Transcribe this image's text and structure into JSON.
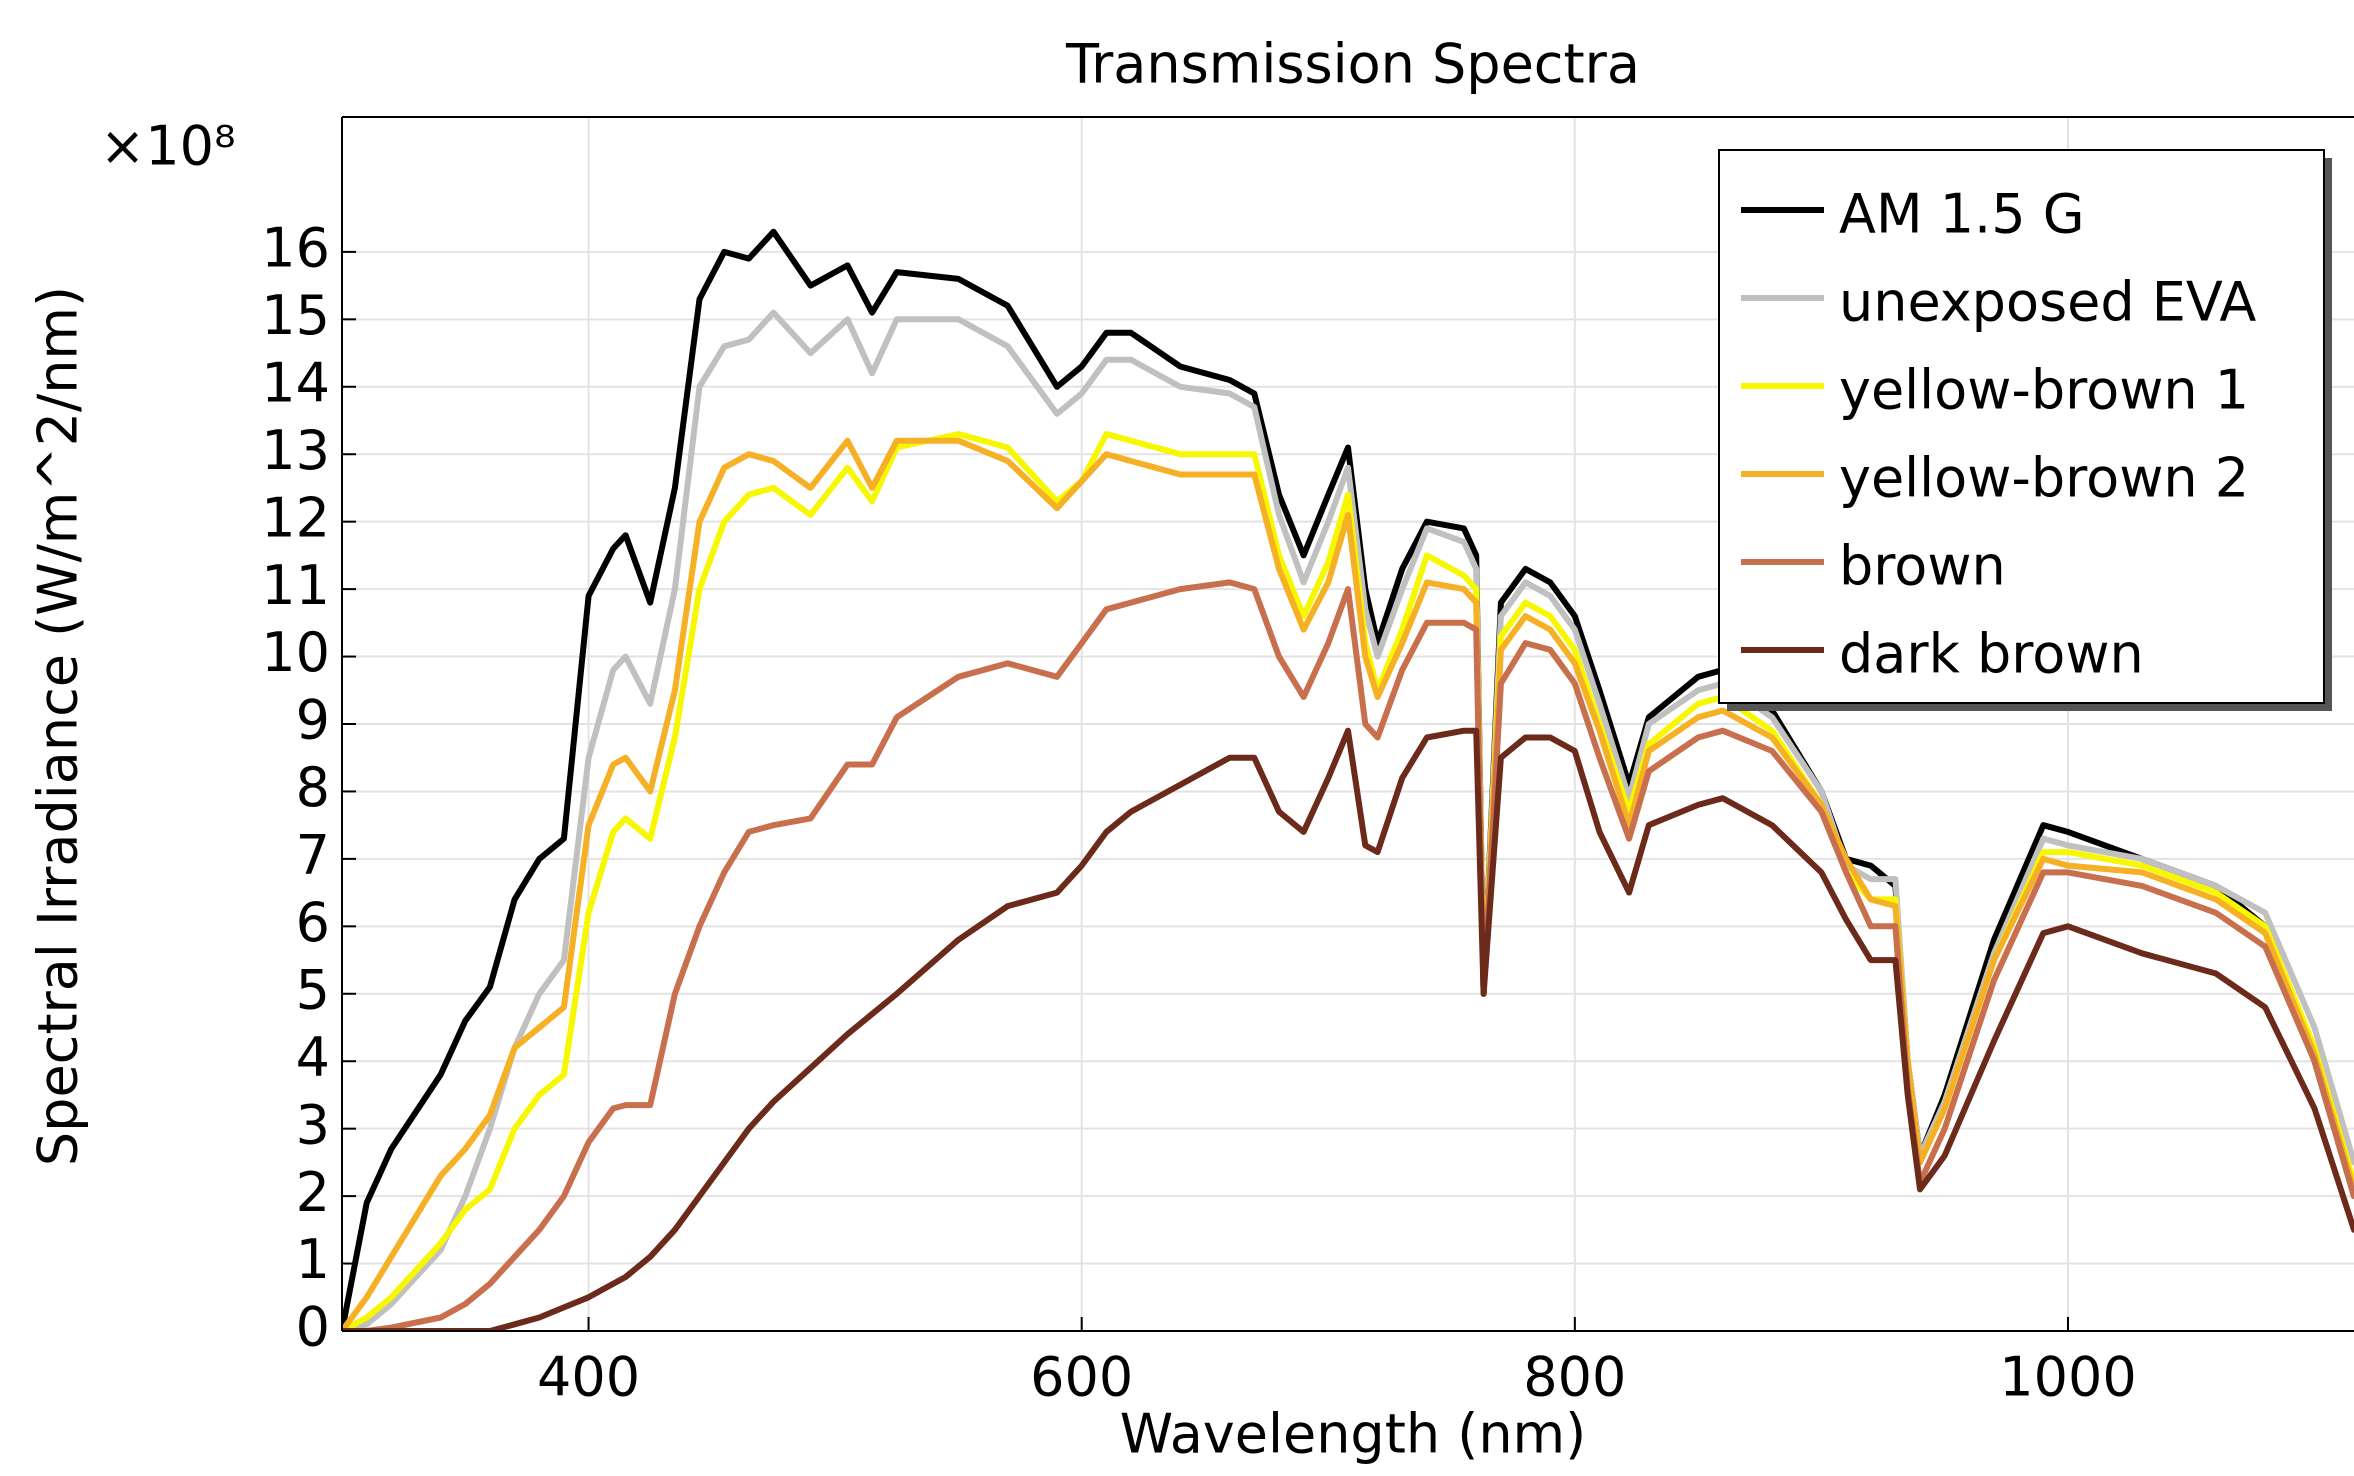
{
  "chart_data": {
    "type": "line",
    "title": "Transmission Spectra",
    "xlabel": "Wavelength (nm)",
    "ylabel": "Spectral Irradiance (W/m^2/nm)",
    "y_multiplier": "×10⁸",
    "xlim": [
      300,
      1116
    ],
    "xticks": [
      400,
      600,
      800,
      1000
    ],
    "ylim": [
      0,
      18
    ],
    "yticks": [
      0,
      1,
      2,
      3,
      4,
      5,
      6,
      7,
      8,
      9,
      10,
      11,
      12,
      13,
      14,
      15,
      16
    ],
    "grid": true,
    "legend": "upper right",
    "x": [
      300,
      310,
      320,
      340,
      350,
      360,
      370,
      380,
      390,
      400,
      410,
      415,
      425,
      435,
      445,
      455,
      465,
      475,
      490,
      505,
      515,
      525,
      550,
      570,
      590,
      600,
      610,
      620,
      640,
      660,
      670,
      680,
      690,
      700,
      708,
      715,
      720,
      730,
      740,
      755,
      760,
      763,
      770,
      780,
      790,
      800,
      810,
      822,
      830,
      850,
      860,
      880,
      900,
      910,
      920,
      930,
      935,
      940,
      950,
      970,
      990,
      1000,
      1030,
      1060,
      1080,
      1100,
      1116
    ],
    "series": [
      {
        "name": "AM 1.5 G",
        "color": "#000000",
        "values": [
          0,
          1.9,
          2.7,
          3.8,
          4.6,
          5.1,
          6.4,
          7.0,
          7.3,
          10.9,
          11.6,
          11.8,
          10.8,
          12.5,
          15.3,
          16.0,
          15.9,
          16.3,
          15.5,
          15.8,
          15.1,
          15.7,
          15.6,
          15.2,
          14.0,
          14.3,
          14.8,
          14.8,
          14.3,
          14.1,
          13.9,
          12.4,
          11.5,
          12.4,
          13.1,
          11.0,
          10.2,
          11.3,
          12.0,
          11.9,
          11.5,
          5.0,
          10.8,
          11.3,
          11.1,
          10.6,
          9.5,
          8.1,
          9.1,
          9.7,
          9.8,
          9.2,
          8.0,
          7.0,
          6.9,
          6.6,
          4.0,
          2.6,
          3.5,
          5.8,
          7.5,
          7.4,
          7.0,
          6.6,
          6.0,
          4.0,
          2.0
        ]
      },
      {
        "name": "unexposed EVA",
        "color": "#c0c0c0",
        "values": [
          0,
          0.1,
          0.4,
          1.2,
          2.0,
          3.0,
          4.2,
          5.0,
          5.5,
          8.5,
          9.8,
          10.0,
          9.3,
          11.0,
          14.0,
          14.6,
          14.7,
          15.1,
          14.5,
          15.0,
          14.2,
          15.0,
          15.0,
          14.6,
          13.6,
          13.9,
          14.4,
          14.4,
          14.0,
          13.9,
          13.7,
          12.1,
          11.1,
          12.0,
          12.8,
          10.7,
          10.0,
          11.0,
          11.9,
          11.7,
          11.3,
          5.0,
          10.6,
          11.1,
          10.9,
          10.4,
          9.3,
          7.9,
          9.0,
          9.5,
          9.6,
          9.1,
          8.0,
          6.9,
          6.7,
          6.7,
          4.0,
          2.6,
          3.4,
          5.6,
          7.3,
          7.2,
          7.0,
          6.6,
          6.2,
          4.5,
          2.5
        ]
      },
      {
        "name": "yellow-brown 1",
        "color": "#f7f700",
        "values": [
          0,
          0.2,
          0.5,
          1.3,
          1.8,
          2.1,
          3.0,
          3.5,
          3.8,
          6.2,
          7.4,
          7.6,
          7.3,
          8.8,
          11.0,
          12.0,
          12.4,
          12.5,
          12.1,
          12.8,
          12.3,
          13.1,
          13.3,
          13.1,
          12.3,
          12.6,
          13.3,
          13.2,
          13.0,
          13.0,
          13.0,
          11.5,
          10.6,
          11.4,
          12.4,
          10.2,
          9.5,
          10.4,
          11.5,
          11.2,
          11.0,
          5.0,
          10.3,
          10.8,
          10.6,
          10.1,
          9.0,
          7.7,
          8.7,
          9.3,
          9.4,
          8.9,
          7.8,
          6.8,
          6.4,
          6.4,
          4.0,
          2.5,
          3.3,
          5.5,
          7.1,
          7.1,
          6.9,
          6.5,
          6.0,
          4.2,
          2.2
        ]
      },
      {
        "name": "yellow-brown 2",
        "color": "#f5b025",
        "values": [
          0,
          0.5,
          1.1,
          2.3,
          2.7,
          3.2,
          4.2,
          4.5,
          4.8,
          7.5,
          8.4,
          8.5,
          8.0,
          9.5,
          12.0,
          12.8,
          13.0,
          12.9,
          12.5,
          13.2,
          12.5,
          13.2,
          13.2,
          12.9,
          12.2,
          12.6,
          13.0,
          12.9,
          12.7,
          12.7,
          12.7,
          11.3,
          10.4,
          11.1,
          12.1,
          10.0,
          9.4,
          10.2,
          11.1,
          11.0,
          10.8,
          5.0,
          10.1,
          10.6,
          10.4,
          9.9,
          8.9,
          7.5,
          8.6,
          9.1,
          9.2,
          8.8,
          7.8,
          7.0,
          6.4,
          6.3,
          4.0,
          2.5,
          3.3,
          5.5,
          7.0,
          6.9,
          6.8,
          6.4,
          5.9,
          4.1,
          2.1
        ]
      },
      {
        "name": "brown",
        "color": "#c8704d",
        "values": [
          0,
          0,
          0.05,
          0.2,
          0.4,
          0.7,
          1.1,
          1.5,
          2.0,
          2.8,
          3.3,
          3.35,
          3.35,
          5.0,
          6.0,
          6.8,
          7.4,
          7.5,
          7.6,
          8.4,
          8.4,
          9.1,
          9.7,
          9.9,
          9.7,
          10.2,
          10.7,
          10.8,
          11.0,
          11.1,
          11.0,
          10.0,
          9.4,
          10.2,
          11.0,
          9.0,
          8.8,
          9.8,
          10.5,
          10.5,
          10.4,
          5.0,
          9.6,
          10.2,
          10.1,
          9.6,
          8.5,
          7.3,
          8.3,
          8.8,
          8.9,
          8.6,
          7.7,
          6.8,
          6.0,
          6.0,
          3.6,
          2.2,
          3.0,
          5.2,
          6.8,
          6.8,
          6.6,
          6.2,
          5.7,
          4.0,
          2.0
        ]
      },
      {
        "name": "dark brown",
        "color": "#6b2a1a",
        "values": [
          0,
          0,
          0,
          0,
          0,
          0,
          0.1,
          0.2,
          0.35,
          0.5,
          0.7,
          0.8,
          1.1,
          1.5,
          2.0,
          2.5,
          3.0,
          3.4,
          3.9,
          4.4,
          4.7,
          5.0,
          5.8,
          6.3,
          6.5,
          6.9,
          7.4,
          7.7,
          8.1,
          8.5,
          8.5,
          7.7,
          7.4,
          8.2,
          8.9,
          7.2,
          7.1,
          8.2,
          8.8,
          8.9,
          8.9,
          5.0,
          8.5,
          8.8,
          8.8,
          8.6,
          7.4,
          6.5,
          7.5,
          7.8,
          7.9,
          7.5,
          6.8,
          6.1,
          5.5,
          5.5,
          3.5,
          2.1,
          2.6,
          4.3,
          5.9,
          6.0,
          5.6,
          5.3,
          4.8,
          3.3,
          1.5
        ]
      }
    ]
  }
}
